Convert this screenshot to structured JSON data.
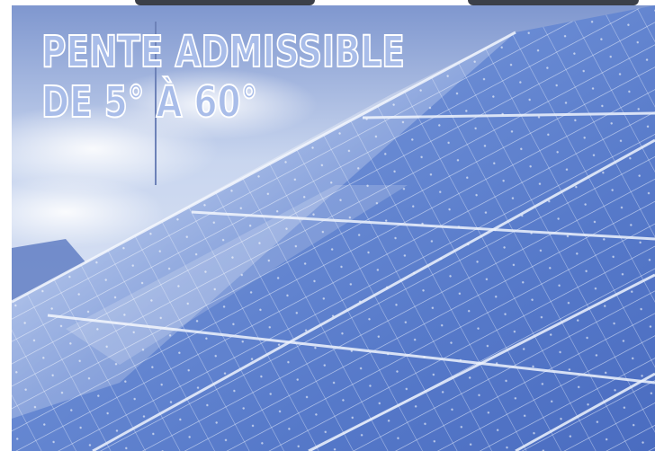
{
  "headline": {
    "line1": "PENTE ADMISSIBLE",
    "line2": "DE 5° À 60°"
  },
  "colors": {
    "sky": "#d6e0f3",
    "panel": "#4f73c7",
    "panel_light": "#9fb6e6",
    "text_fill": "#a9bde9",
    "text_outline": "#ffffff"
  }
}
